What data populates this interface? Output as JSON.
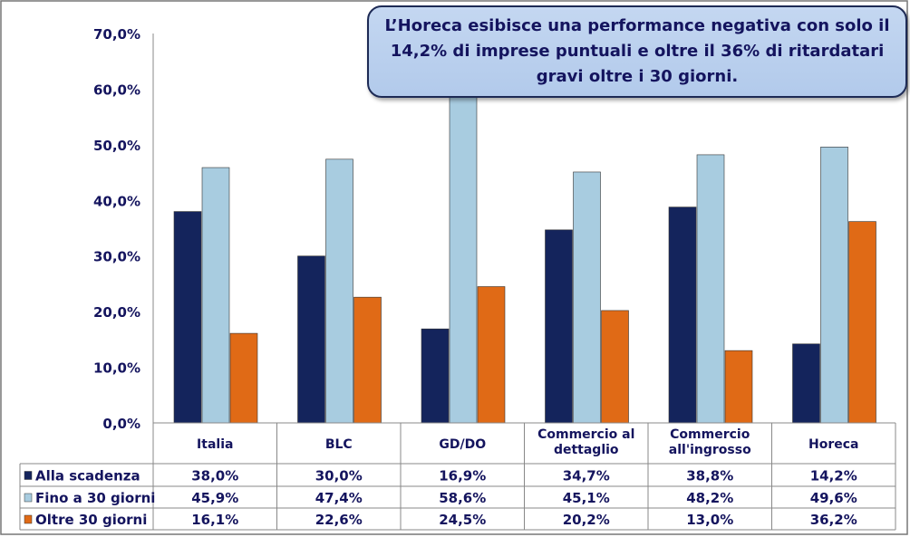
{
  "callout": {
    "text": "L’Horeca esibisce una performance negativa con solo il 14,2% di imprese puntuali e oltre il 36% di ritardatari gravi oltre i 30 giorni."
  },
  "chart_data": {
    "type": "bar",
    "title": "",
    "xlabel": "",
    "ylabel": "",
    "ylim": [
      0,
      70
    ],
    "yticks": [
      "0,0%",
      "10,0%",
      "20,0%",
      "30,0%",
      "40,0%",
      "50,0%",
      "60,0%",
      "70,0%"
    ],
    "categories": [
      "Italia",
      "BLC",
      "GD/DO",
      "Commercio al dettaglio",
      "Commercio all'ingrosso",
      "Horeca"
    ],
    "category_lines": [
      [
        "Italia"
      ],
      [
        "BLC"
      ],
      [
        "GD/DO"
      ],
      [
        "Commercio al",
        "dettaglio"
      ],
      [
        "Commercio",
        "all'ingrosso"
      ],
      [
        "Horeca"
      ]
    ],
    "series": [
      {
        "name": "Alla scadenza",
        "color": "#14245c",
        "values": [
          38.0,
          30.0,
          16.9,
          34.7,
          38.8,
          14.2
        ],
        "labels": [
          "38,0%",
          "30,0%",
          "16,9%",
          "34,7%",
          "38,8%",
          "14,2%"
        ]
      },
      {
        "name": "Fino a 30 giorni",
        "color": "#a8cce0",
        "values": [
          45.9,
          47.4,
          58.6,
          45.1,
          48.2,
          49.6
        ],
        "labels": [
          "45,9%",
          "47,4%",
          "58,6%",
          "45,1%",
          "48,2%",
          "49,6%"
        ]
      },
      {
        "name": "Oltre 30 giorni",
        "color": "#e06a16",
        "values": [
          16.1,
          22.6,
          24.5,
          20.2,
          13.0,
          36.2
        ],
        "labels": [
          "16,1%",
          "22,6%",
          "24,5%",
          "20,2%",
          "13,0%",
          "36,2%"
        ]
      }
    ],
    "legend": "data-table-bottom",
    "grid": false
  }
}
